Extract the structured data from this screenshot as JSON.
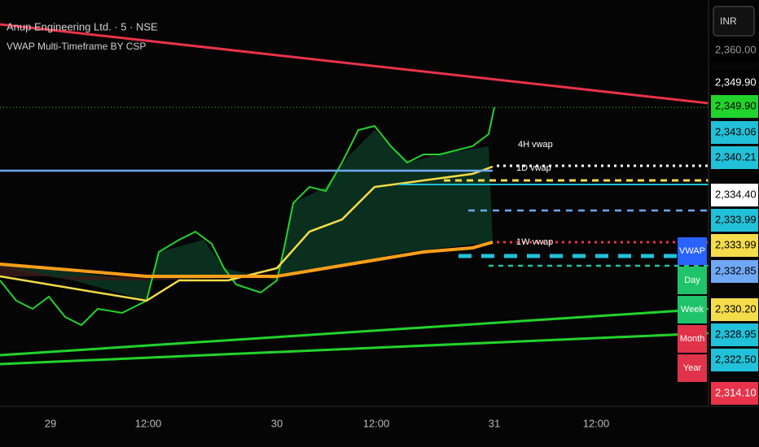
{
  "header": {
    "symbol": "Anup Engineering Ltd. · 5 · NSE",
    "indicator": "VWAP Multi-Timeframe BY CSP",
    "currency": "INR"
  },
  "price_axis": {
    "labels": [
      {
        "text": "2,360.00",
        "bg": "#000000",
        "fg": "#9a9a9a"
      },
      {
        "text": "2,349.90",
        "bg": "#000000",
        "fg": "#ffffff"
      },
      {
        "text": "2,349.90",
        "bg": "#22d32b",
        "fg": "#000000"
      },
      {
        "text": "2,343.06",
        "bg": "#21c1d9",
        "fg": "#000000"
      },
      {
        "text": "2,340.21",
        "bg": "#21c1d9",
        "fg": "#000000"
      },
      {
        "text": "2,334.40",
        "bg": "#ffffff",
        "fg": "#000000"
      },
      {
        "text": "2,333.99",
        "bg": "#21c1d9",
        "fg": "#000000"
      },
      {
        "text": "2,333.99",
        "bg": "#f5dc4a",
        "fg": "#000000"
      },
      {
        "text": "2,332.85",
        "bg": "#6fa8f5",
        "fg": "#000000"
      },
      {
        "text": "2,330.20",
        "bg": "#f5dc4a",
        "fg": "#000000"
      },
      {
        "text": "2,328.95",
        "bg": "#21c1d9",
        "fg": "#000000"
      },
      {
        "text": "2,322.50",
        "bg": "#21c1d9",
        "fg": "#000000"
      },
      {
        "text": "2,314.10",
        "bg": "#e8334a",
        "fg": "#ffffff"
      }
    ]
  },
  "time_axis": {
    "labels": [
      "29",
      "12:00",
      "30",
      "12:00",
      "31",
      "12:00"
    ]
  },
  "line_labels": [
    "4H vwap",
    "1D vwap",
    "1W vwap"
  ],
  "legend": {
    "items": [
      {
        "text": "VWAP",
        "bg": "#2962ff"
      },
      {
        "text": "Day",
        "bg": "#1fc46a"
      },
      {
        "text": "Week",
        "bg": "#1fc46a"
      },
      {
        "text": "Month",
        "bg": "#e0334a"
      },
      {
        "text": "Year",
        "bg": "#e0334a"
      }
    ]
  }
}
